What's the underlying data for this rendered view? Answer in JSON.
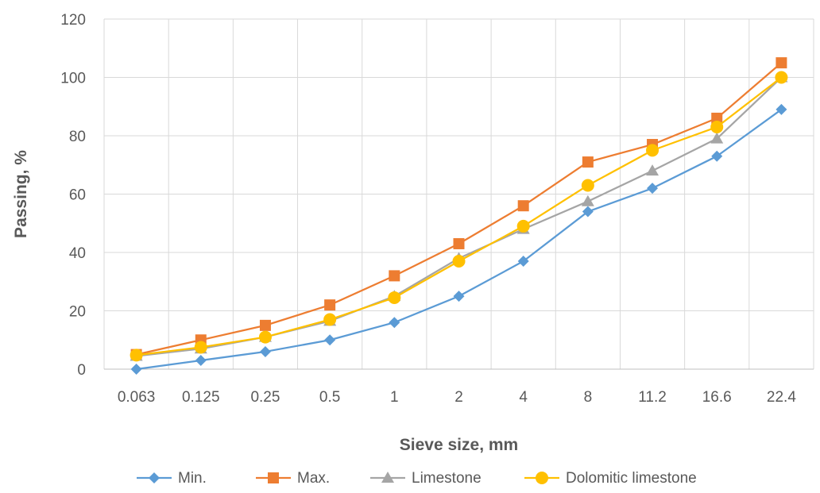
{
  "chart_data": {
    "type": "line",
    "title": "",
    "xlabel": "Sieve size, mm",
    "ylabel": "Passing, %",
    "categories": [
      "0.063",
      "0.125",
      "0.25",
      "0.5",
      "1",
      "2",
      "4",
      "8",
      "11.2",
      "16.6",
      "22.4"
    ],
    "ylim": [
      0,
      120
    ],
    "yticks": [
      "0",
      "20",
      "40",
      "60",
      "80",
      "100",
      "120"
    ],
    "grid": "both",
    "legend_position": "bottom",
    "series": [
      {
        "name": "Min.",
        "color": "#5B9BD5",
        "marker": "diamond",
        "values": [
          0,
          3,
          6,
          10,
          16,
          25,
          37,
          54,
          62,
          73,
          89
        ]
      },
      {
        "name": "Max.",
        "color": "#ED7D31",
        "marker": "square",
        "values": [
          5,
          10,
          15,
          22,
          32,
          43,
          56,
          71,
          77,
          86,
          105
        ]
      },
      {
        "name": "Limestone",
        "color": "#A5A5A5",
        "marker": "triangle",
        "values": [
          4.5,
          7,
          11,
          16.5,
          25,
          38,
          48,
          57.5,
          68,
          79,
          100
        ]
      },
      {
        "name": "Dolomitic limestone",
        "color": "#FFC000",
        "marker": "circle",
        "values": [
          4.8,
          7.5,
          11,
          17,
          24.5,
          37,
          49,
          63,
          75,
          83,
          100
        ]
      }
    ]
  }
}
